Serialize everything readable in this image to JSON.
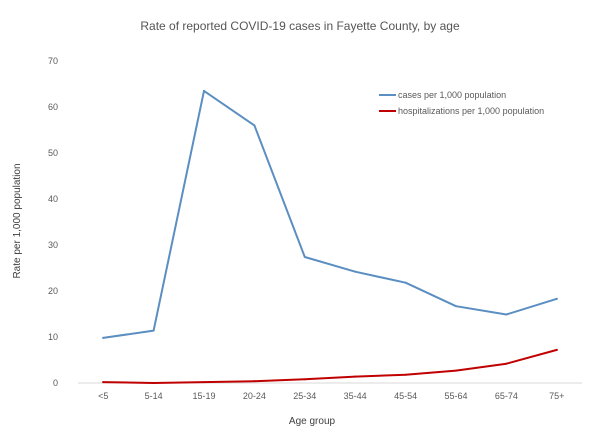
{
  "chart_data": {
    "type": "line",
    "title": "Rate of reported COVID-19 cases in Fayette County, by age",
    "xlabel": "Age group",
    "ylabel": "Rate per 1,000 population",
    "categories": [
      "<5",
      "5-14",
      "15-19",
      "20-24",
      "25-34",
      "35-44",
      "45-54",
      "55-64",
      "65-74",
      "75+"
    ],
    "ylim": [
      0,
      70
    ],
    "yticks": [
      0,
      10,
      20,
      30,
      40,
      50,
      60,
      70
    ],
    "grid": false,
    "legend_position": "top-right",
    "series": [
      {
        "name": "cases per 1,000 population",
        "color": "#5b8ec1",
        "values": [
          9.8,
          11.4,
          63.5,
          56.0,
          27.4,
          24.2,
          21.8,
          16.7,
          14.9,
          18.3
        ]
      },
      {
        "name": "hospitalizations per 1,000 population",
        "color": "#c00000",
        "values": [
          0.2,
          0.0,
          0.2,
          0.4,
          0.8,
          1.4,
          1.8,
          2.7,
          4.2,
          7.2
        ]
      }
    ]
  }
}
